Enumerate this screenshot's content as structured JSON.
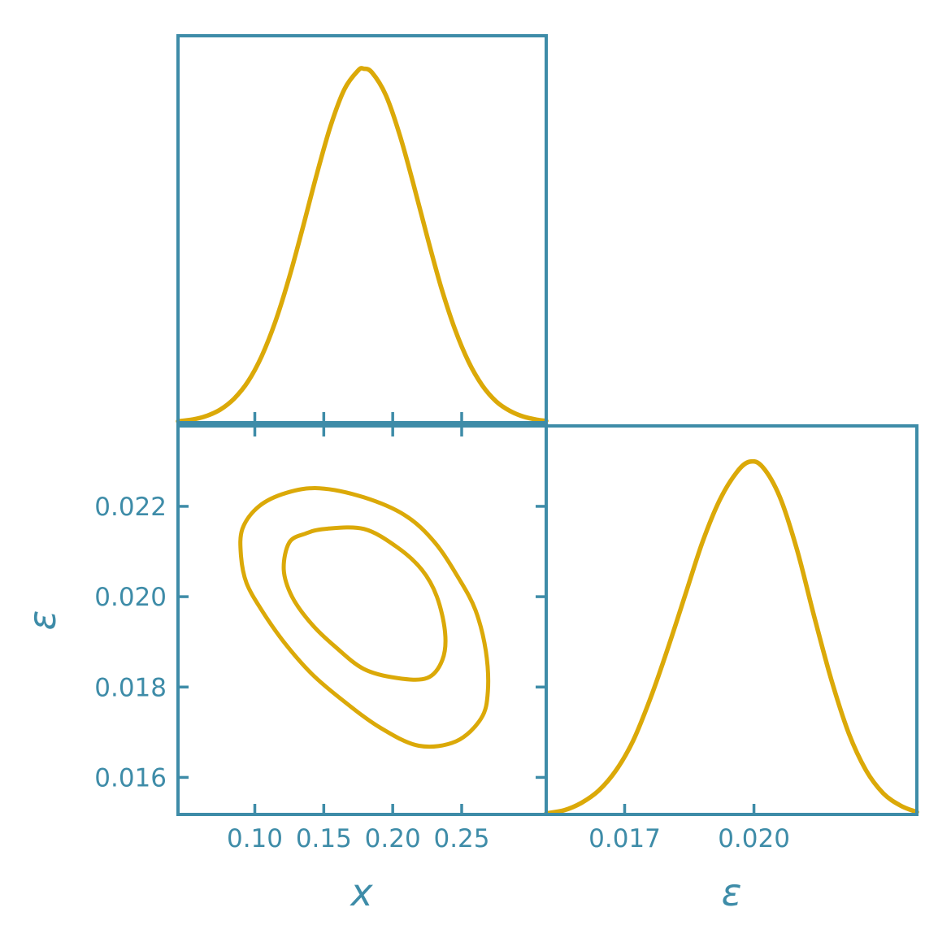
{
  "figure": {
    "type": "corner-plot",
    "background": "#ffffff",
    "axis_color": "#3e8ca8",
    "curve_color": "#dba908"
  },
  "labels": {
    "x_bottom_left": "x",
    "eps_bottom_right": "ε",
    "eps_left": "ε"
  },
  "chart_data": [
    {
      "id": "x_marginal",
      "type": "line",
      "title": "",
      "xlabel": "x",
      "ylabel": "",
      "legend": "none",
      "grid": false,
      "xlim": [
        0.0443,
        0.3113
      ],
      "peak_fraction": 0.915,
      "xticks": [
        0.1,
        0.15,
        0.2,
        0.25
      ],
      "xticklabels": [],
      "x": [
        0.0443,
        0.055,
        0.065,
        0.075,
        0.085,
        0.095,
        0.105,
        0.115,
        0.125,
        0.135,
        0.145,
        0.155,
        0.165,
        0.175,
        0.179,
        0.185,
        0.195,
        0.205,
        0.215,
        0.225,
        0.235,
        0.245,
        0.255,
        0.265,
        0.275,
        0.285,
        0.295,
        0.305,
        0.3113
      ],
      "y": [
        0.004,
        0.009,
        0.019,
        0.037,
        0.068,
        0.116,
        0.188,
        0.287,
        0.411,
        0.554,
        0.703,
        0.839,
        0.942,
        0.995,
        1.0,
        0.989,
        0.925,
        0.814,
        0.674,
        0.525,
        0.384,
        0.265,
        0.172,
        0.105,
        0.06,
        0.033,
        0.017,
        0.008,
        0.005
      ]
    },
    {
      "id": "x_eps_contour",
      "type": "contour",
      "title": "",
      "xlabel": "x",
      "ylabel": "ε",
      "legend": "none",
      "grid": false,
      "xlim": [
        0.0443,
        0.3113
      ],
      "ylim": [
        0.01518,
        0.02378
      ],
      "xticks": [
        0.1,
        0.15,
        0.2,
        0.25
      ],
      "xticklabels": [
        "0.10",
        "0.15",
        "0.20",
        "0.25"
      ],
      "yticks": [
        0.016,
        0.018,
        0.02,
        0.022
      ],
      "yticklabels": [
        "0.016",
        "0.018",
        "0.020",
        "0.022"
      ],
      "series": [
        {
          "name": "outer_contour",
          "points": [
            [
              0.147,
              0.0224
            ],
            [
              0.179,
              0.0222
            ],
            [
              0.209,
              0.0218
            ],
            [
              0.2305,
              0.0212
            ],
            [
              0.248,
              0.0204
            ],
            [
              0.26,
              0.0197
            ],
            [
              0.2675,
              0.0188
            ],
            [
              0.269,
              0.0179
            ],
            [
              0.264,
              0.0173
            ],
            [
              0.246,
              0.0168
            ],
            [
              0.219,
              0.0167
            ],
            [
              0.191,
              0.0171
            ],
            [
              0.164,
              0.0177
            ],
            [
              0.141,
              0.0183
            ],
            [
              0.121,
              0.019
            ],
            [
              0.105,
              0.0197
            ],
            [
              0.094,
              0.0203
            ],
            [
              0.09,
              0.0209
            ],
            [
              0.091,
              0.0215
            ],
            [
              0.103,
              0.022
            ],
            [
              0.123,
              0.0223
            ]
          ]
        },
        {
          "name": "inner_contour",
          "points": [
            [
              0.151,
              0.0215
            ],
            [
              0.179,
              0.0215
            ],
            [
              0.203,
              0.0211
            ],
            [
              0.221,
              0.0206
            ],
            [
              0.232,
              0.02
            ],
            [
              0.238,
              0.0192
            ],
            [
              0.236,
              0.0186
            ],
            [
              0.225,
              0.0182
            ],
            [
              0.203,
              0.0182
            ],
            [
              0.179,
              0.0184
            ],
            [
              0.158,
              0.0189
            ],
            [
              0.141,
              0.0194
            ],
            [
              0.127,
              0.02
            ],
            [
              0.121,
              0.0206
            ],
            [
              0.125,
              0.0212
            ],
            [
              0.137,
              0.0214
            ]
          ]
        }
      ]
    },
    {
      "id": "eps_marginal",
      "type": "line",
      "title": "",
      "xlabel": "ε",
      "ylabel": "",
      "legend": "none",
      "grid": false,
      "xlim": [
        0.01518,
        0.02378
      ],
      "peak_fraction": 0.908,
      "xticks": [
        0.017,
        0.02
      ],
      "xticklabels": [
        "0.017",
        "0.020"
      ],
      "x": [
        0.01518,
        0.0156,
        0.016,
        0.0164,
        0.0168,
        0.0172,
        0.0176,
        0.018,
        0.0184,
        0.0188,
        0.0192,
        0.0196,
        0.0199,
        0.0202,
        0.0206,
        0.021,
        0.0214,
        0.0218,
        0.0222,
        0.0226,
        0.023,
        0.0234,
        0.02378
      ],
      "y": [
        0.003,
        0.012,
        0.033,
        0.068,
        0.125,
        0.21,
        0.33,
        0.47,
        0.62,
        0.77,
        0.89,
        0.97,
        1.0,
        0.985,
        0.9,
        0.75,
        0.56,
        0.38,
        0.23,
        0.125,
        0.06,
        0.025,
        0.007
      ]
    }
  ]
}
